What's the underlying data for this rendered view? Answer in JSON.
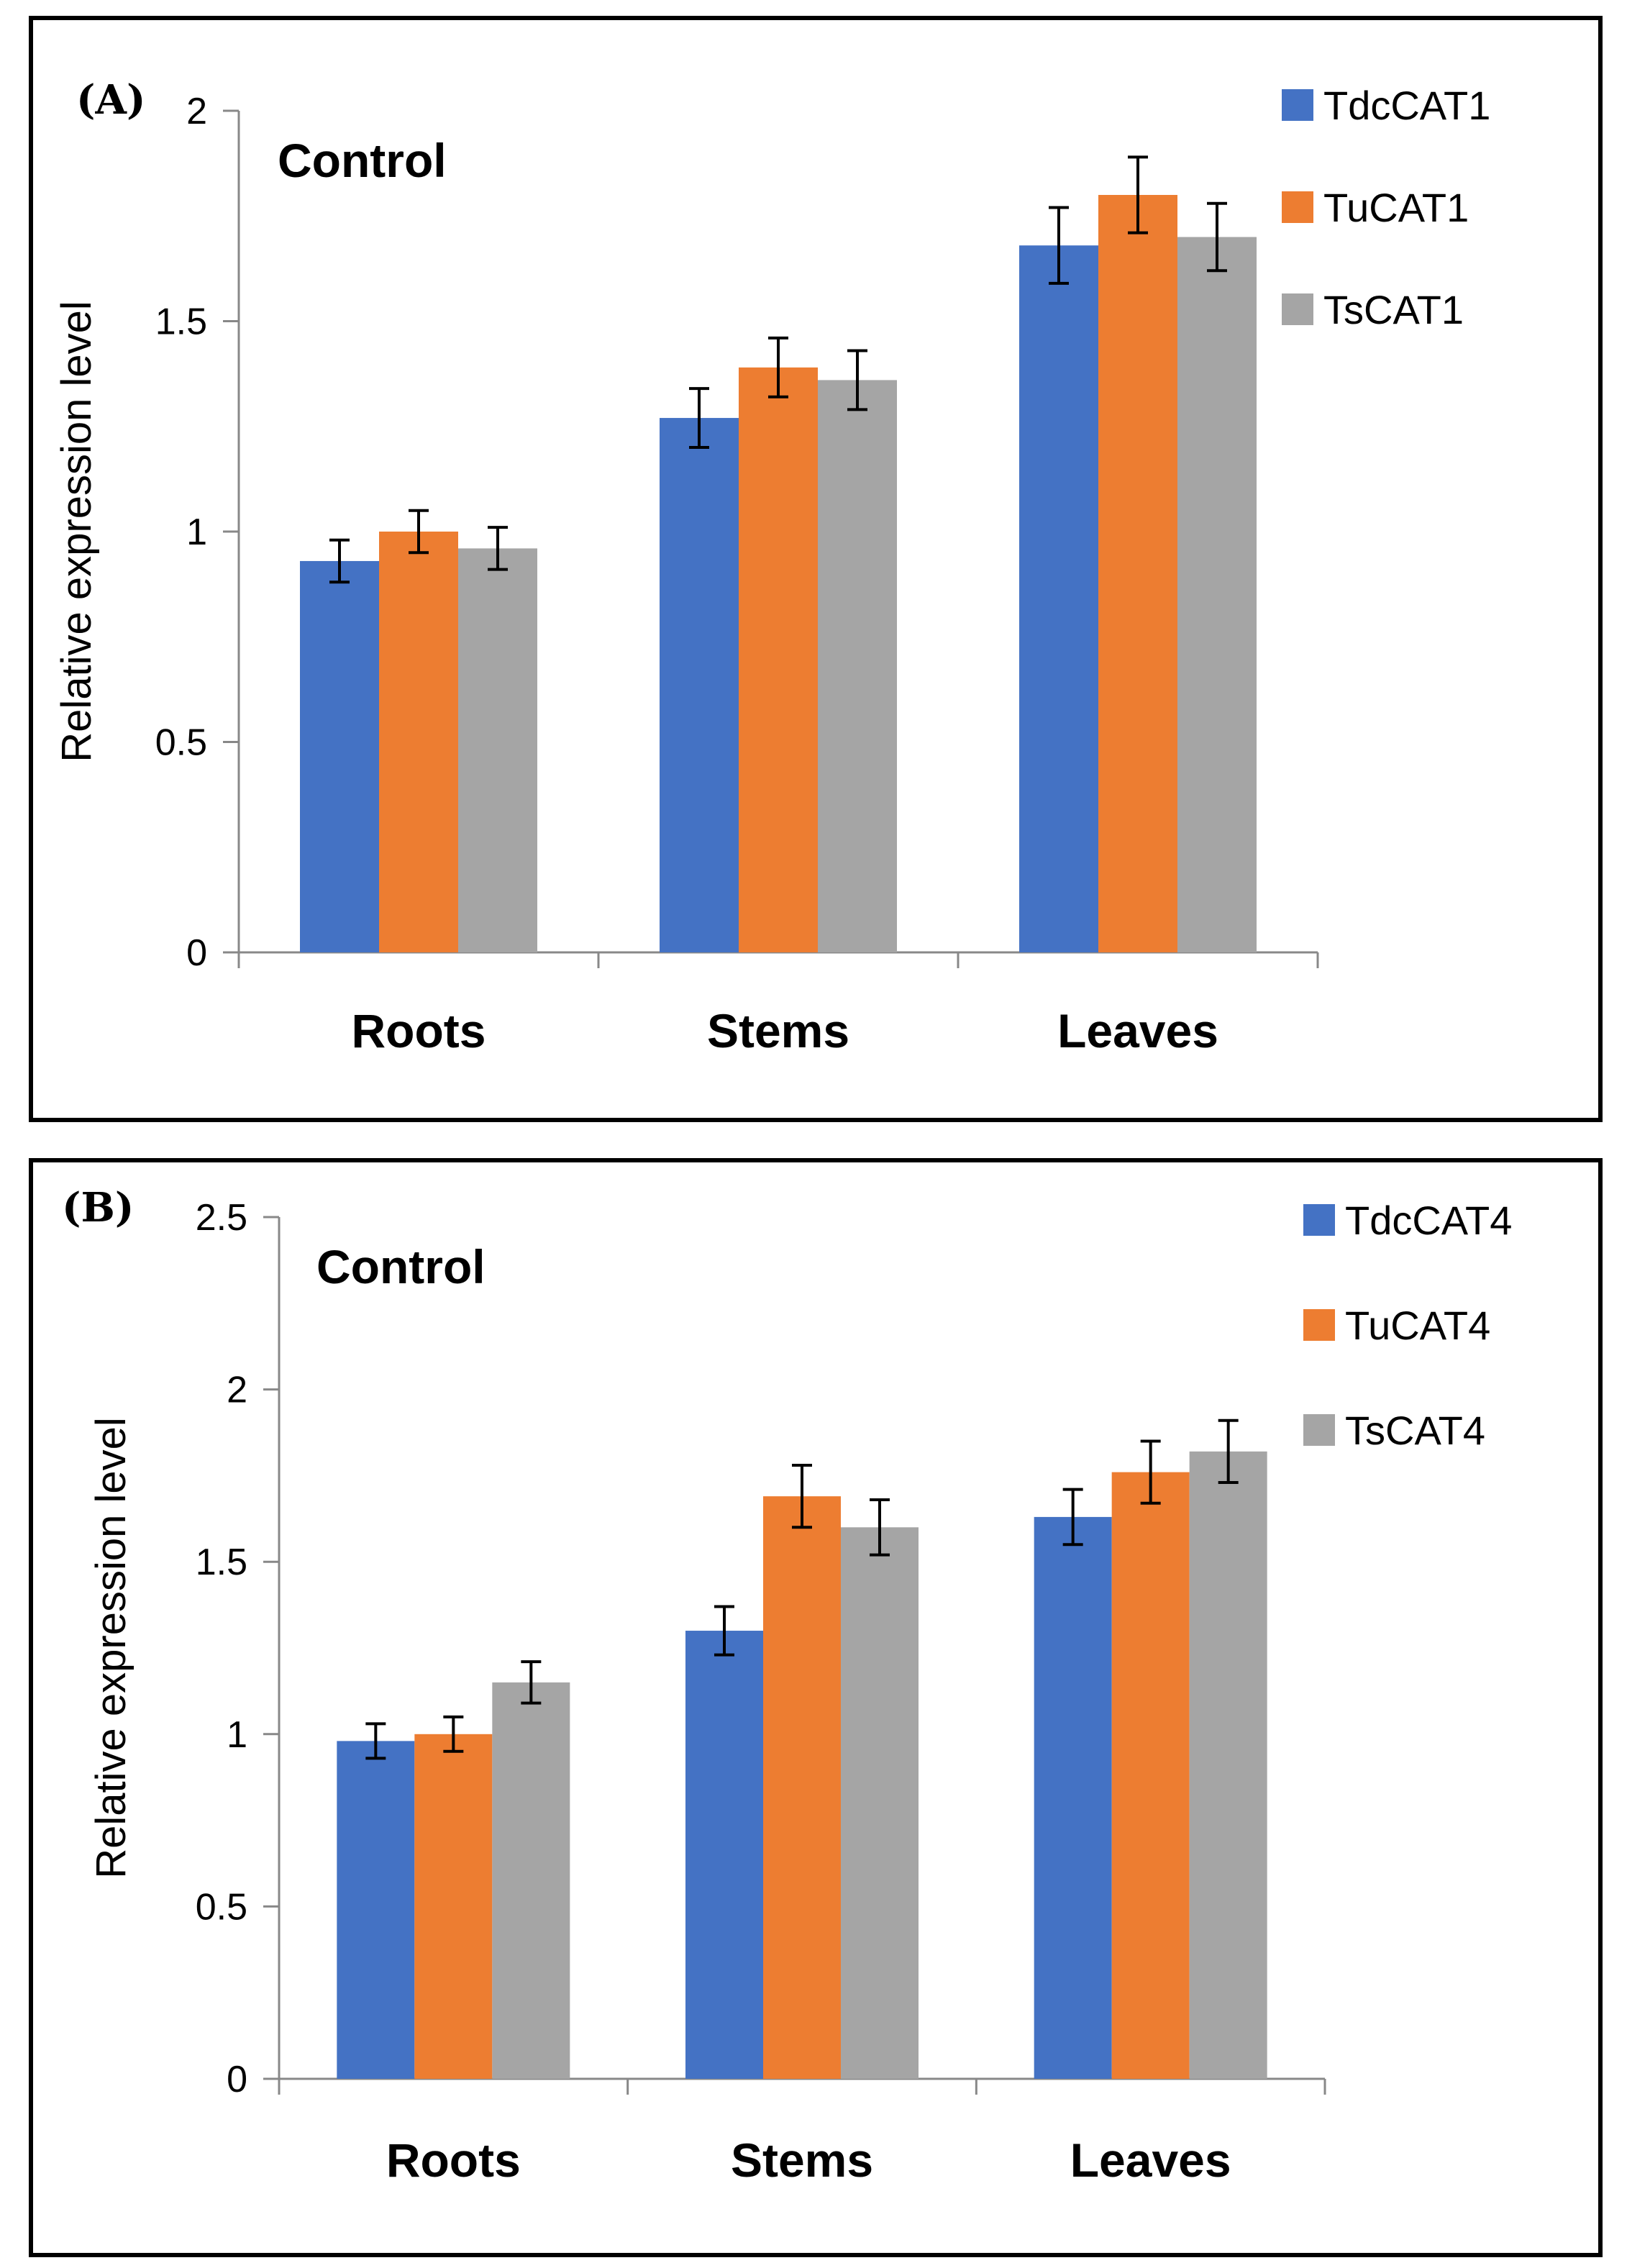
{
  "chart_data": [
    {
      "type": "bar",
      "panel_label": "(A)",
      "annotation": "Control",
      "title": "",
      "xlabel": "",
      "ylabel": "Relative expression level",
      "ylim": [
        0,
        2
      ],
      "yticks": [
        0,
        0.5,
        1,
        1.5,
        2
      ],
      "ytick_labels": [
        "0",
        "0.5",
        "1",
        "1.5",
        "2"
      ],
      "categories": [
        "Roots",
        "Stems",
        "Leaves"
      ],
      "legend_position": "top-right",
      "series": [
        {
          "name": "TdcCAT1",
          "color": "#4472C4",
          "values": [
            0.93,
            1.27,
            1.68
          ],
          "errors": [
            0.05,
            0.07,
            0.09
          ]
        },
        {
          "name": "TuCAT1",
          "color": "#ED7D31",
          "values": [
            1.0,
            1.39,
            1.8
          ],
          "errors": [
            0.05,
            0.07,
            0.09
          ]
        },
        {
          "name": "TsCAT1",
          "color": "#A5A5A5",
          "values": [
            0.96,
            1.36,
            1.7
          ],
          "errors": [
            0.05,
            0.07,
            0.08
          ]
        }
      ]
    },
    {
      "type": "bar",
      "panel_label": "(B)",
      "annotation": "Control",
      "title": "",
      "xlabel": "",
      "ylabel": "Relative expression level",
      "ylim": [
        0,
        2.5
      ],
      "yticks": [
        0,
        0.5,
        1,
        1.5,
        2,
        2.5
      ],
      "ytick_labels": [
        "0",
        "0.5",
        "1",
        "1.5",
        "2",
        "2.5"
      ],
      "categories": [
        "Roots",
        "Stems",
        "Leaves"
      ],
      "legend_position": "top-right",
      "series": [
        {
          "name": "TdcCAT4",
          "color": "#4472C4",
          "values": [
            0.98,
            1.3,
            1.63
          ],
          "errors": [
            0.05,
            0.07,
            0.08
          ]
        },
        {
          "name": "TuCAT4",
          "color": "#ED7D31",
          "values": [
            1.0,
            1.69,
            1.76
          ],
          "errors": [
            0.05,
            0.09,
            0.09
          ]
        },
        {
          "name": "TsCAT4",
          "color": "#A5A5A5",
          "values": [
            1.15,
            1.6,
            1.82
          ],
          "errors": [
            0.06,
            0.08,
            0.09
          ]
        }
      ]
    }
  ]
}
